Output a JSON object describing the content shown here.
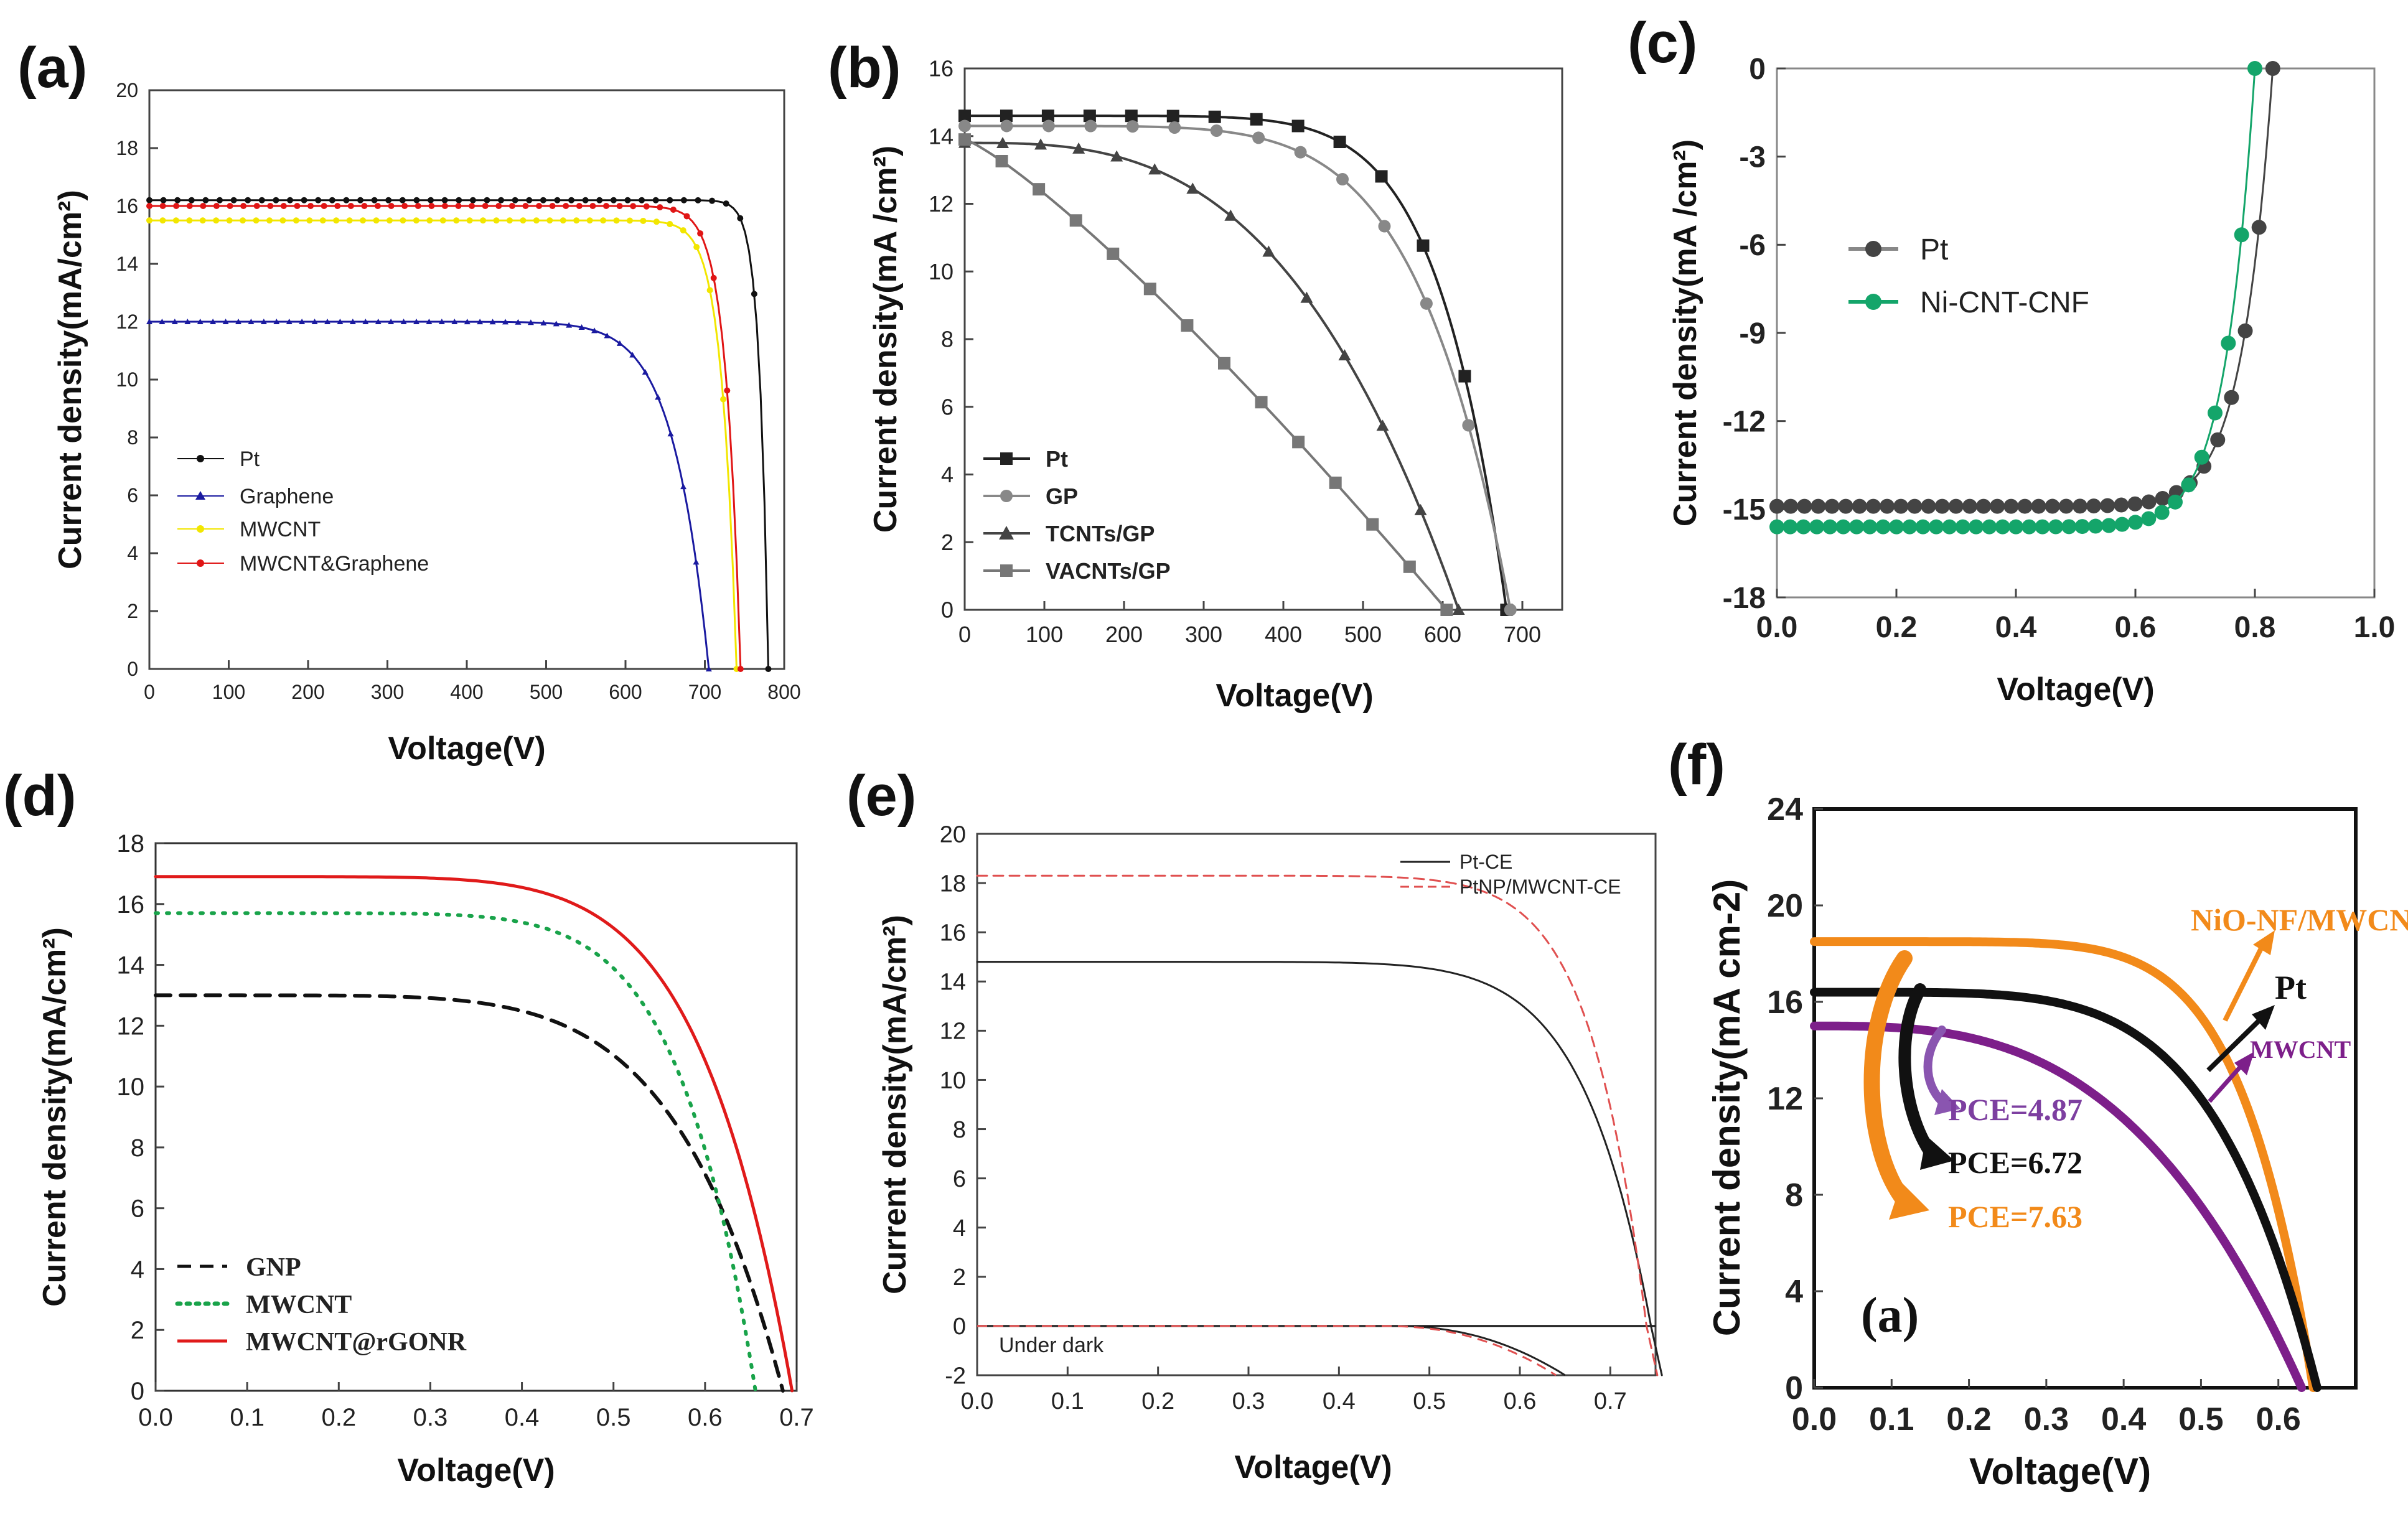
{
  "chart_data": [
    {
      "type": "line",
      "panel": "(a)",
      "xlabel": "Voltage(V)",
      "ylabel": "Current density(mA/cm²)",
      "xlim": [
        0,
        800
      ],
      "ylim": [
        0,
        20
      ],
      "xticks": [
        "0",
        "100",
        "200",
        "300",
        "400",
        "500",
        "600",
        "700",
        "800"
      ],
      "yticks": [
        "0",
        "2",
        "4",
        "6",
        "8",
        "10",
        "12",
        "14",
        "16",
        "18",
        "20"
      ],
      "legend_position": "middle-left",
      "series": [
        {
          "name": "Pt",
          "color": "#111111",
          "marker": "circle",
          "jsc": 16.2,
          "voc": 780,
          "n": 70
        },
        {
          "name": "Graphene",
          "color": "#1a1aa0",
          "marker": "triangle",
          "jsc": 12.0,
          "voc": 705,
          "n": 16
        },
        {
          "name": "MWCNT",
          "color": "#f2e600",
          "marker": "circle",
          "jsc": 15.5,
          "voc": 740,
          "n": 40
        },
        {
          "name": "MWCNT&Graphene",
          "color": "#e01515",
          "marker": "circle",
          "jsc": 16.0,
          "voc": 745,
          "n": 40
        }
      ]
    },
    {
      "type": "line",
      "panel": "(b)",
      "xlabel": "Voltage(V)",
      "ylabel": "Current density(mA /cm²)",
      "xlim": [
        0,
        750
      ],
      "ylim": [
        0,
        16
      ],
      "xticks": [
        "0",
        "100",
        "200",
        "300",
        "400",
        "500",
        "600",
        "700"
      ],
      "yticks": [
        "0",
        "2",
        "4",
        "6",
        "8",
        "10",
        "12",
        "14",
        "16"
      ],
      "legend_position": "lower-left",
      "series": [
        {
          "name": "Pt",
          "color": "#222222",
          "marker": "square",
          "jsc": 14.6,
          "voc": 680,
          "n": 8
        },
        {
          "name": "GP",
          "color": "#888888",
          "marker": "circle",
          "jsc": 14.3,
          "voc": 685,
          "n": 6
        },
        {
          "name": "TCNTs/GP",
          "color": "#444444",
          "marker": "triangle",
          "jsc": 13.8,
          "voc": 620,
          "n": 3
        },
        {
          "name": "VACNTs/GP",
          "color": "#777777",
          "marker": "square",
          "jsc": 13.9,
          "voc": 605,
          "n": 1.2
        }
      ]
    },
    {
      "type": "line",
      "panel": "(c)",
      "xlabel": "Voltage(V)",
      "ylabel": "Current density(mA /cm²)",
      "xlim": [
        0.0,
        1.0
      ],
      "ylim": [
        -18,
        0
      ],
      "xticks": [
        "0.0",
        "0.2",
        "0.4",
        "0.6",
        "0.8",
        "1.0"
      ],
      "yticks": [
        "0",
        "-3",
        "-6",
        "-9",
        "-12",
        "-15",
        "-18"
      ],
      "legend_position": "upper-left",
      "series": [
        {
          "name": "Pt",
          "color": "#444444",
          "marker": "circle",
          "jsc": 14.9,
          "voc": 0.83,
          "n": 16
        },
        {
          "name": "Ni-CNT-CNF",
          "color": "#14a56a",
          "marker": "circle",
          "jsc": 15.6,
          "voc": 0.8,
          "n": 16
        }
      ]
    },
    {
      "type": "line",
      "panel": "(d)",
      "xlabel": "Voltage(V)",
      "ylabel": "Current density(mA/cm²)",
      "xlim": [
        0.0,
        0.7
      ],
      "ylim": [
        0,
        18
      ],
      "xticks": [
        "0.0",
        "0.1",
        "0.2",
        "0.3",
        "0.4",
        "0.5",
        "0.6",
        "0.7"
      ],
      "yticks": [
        "0",
        "2",
        "4",
        "6",
        "8",
        "10",
        "12",
        "14",
        "16",
        "18"
      ],
      "legend_position": "lower-left",
      "series": [
        {
          "name": "GNP",
          "color": "#111111",
          "style": "dashed",
          "jsc": 13.0,
          "voc": 0.685,
          "n": 6
        },
        {
          "name": "MWCNT",
          "color": "#19a34a",
          "style": "dotted",
          "jsc": 15.7,
          "voc": 0.655,
          "n": 8
        },
        {
          "name": "MWCNT@rGONR",
          "color": "#e01a1a",
          "style": "solid",
          "jsc": 16.9,
          "voc": 0.695,
          "n": 7
        }
      ]
    },
    {
      "type": "line",
      "panel": "(e)",
      "xlabel": "Voltage(V)",
      "ylabel": "Current density(mA/cm²)",
      "xlim": [
        0.0,
        0.75
      ],
      "ylim": [
        -2,
        20
      ],
      "xticks": [
        "0.0",
        "0.1",
        "0.2",
        "0.3",
        "0.4",
        "0.5",
        "0.6",
        "0.7"
      ],
      "yticks": [
        "-2",
        "0",
        "2",
        "4",
        "6",
        "8",
        "10",
        "12",
        "14",
        "16",
        "18",
        "20"
      ],
      "legend_position": "top-right",
      "annotation": "Under dark",
      "series": [
        {
          "name": "Pt-CE",
          "color": "#222222",
          "style": "solid",
          "jsc": 14.8,
          "voc": 0.745,
          "n": 10
        },
        {
          "name": "PtNP/MWCNT-CE",
          "color": "#e05050",
          "style": "dashed",
          "jsc": 18.3,
          "voc": 0.74,
          "n": 12
        }
      ],
      "dark_curves": [
        {
          "name": "Pt-CE dark",
          "color": "#222222",
          "style": "solid",
          "onset": 0.46,
          "end_v": 0.65,
          "end_j": -2
        },
        {
          "name": "PtNP/MWCNT-CE dark",
          "color": "#e05050",
          "style": "dashed",
          "onset": 0.45,
          "end_v": 0.64,
          "end_j": -2
        }
      ]
    },
    {
      "type": "line",
      "panel": "(f)",
      "inner_label": "(a)",
      "xlabel": "Voltage(V)",
      "ylabel": "Current density(mA cm-2)",
      "xlim": [
        0.0,
        0.7
      ],
      "ylim": [
        0,
        24
      ],
      "xticks": [
        "0.0",
        "0.1",
        "0.2",
        "0.3",
        "0.4",
        "0.5",
        "0.6"
      ],
      "yticks": [
        "0",
        "4",
        "8",
        "12",
        "16",
        "20",
        "24"
      ],
      "series": [
        {
          "name": "NiO-NF/MWCNT",
          "color": "#f28a1a",
          "jsc": 18.5,
          "voc": 0.645,
          "n": 7
        },
        {
          "name": "Pt",
          "color": "#111111",
          "jsc": 16.4,
          "voc": 0.65,
          "n": 5
        },
        {
          "name": "MWCNT",
          "color": "#7d1f8a",
          "jsc": 15.0,
          "voc": 0.63,
          "n": 3
        }
      ],
      "pce_labels": [
        {
          "text": "PCE=4.87",
          "color": "#7d3fa0"
        },
        {
          "text": "PCE=6.72",
          "color": "#111111"
        },
        {
          "text": "PCE=7.63",
          "color": "#f28a1a"
        }
      ]
    }
  ]
}
